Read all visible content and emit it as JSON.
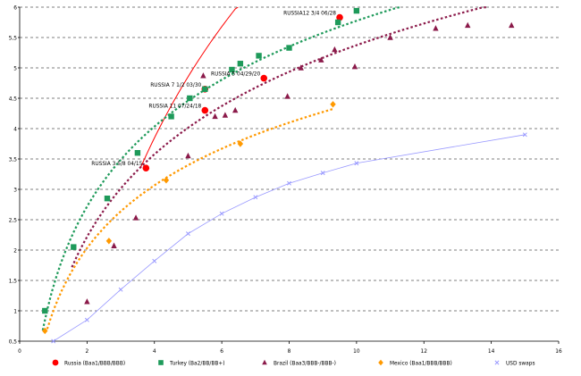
{
  "chart_data": {
    "type": "scatter",
    "xlim": [
      0,
      16
    ],
    "ylim": [
      0.5,
      6
    ],
    "x_ticks": [
      "0",
      "2",
      "4",
      "6",
      "8",
      "10",
      "12",
      "14",
      "16"
    ],
    "y_ticks": [
      "0,5",
      "1",
      "1,5",
      "2",
      "2,5",
      "3",
      "3,5",
      "4",
      "4,5",
      "5",
      "5,5",
      "6"
    ],
    "grid": "horizontal dashed",
    "legend_position": "bottom",
    "series": [
      {
        "key": "russia",
        "name": "Russia (Baa1/BBB/BBB)",
        "color": "#ff0000",
        "marker": "circle",
        "points": [
          [
            3.75,
            3.35
          ],
          [
            5.5,
            4.3
          ],
          [
            5.5,
            4.65
          ],
          [
            7.25,
            4.83
          ],
          [
            9.5,
            5.83
          ]
        ],
        "trend": {
          "style": "solid",
          "x_range": [
            3.6,
            10.2
          ],
          "a": -2.42,
          "b": 4.52
        }
      },
      {
        "key": "turkey",
        "name": "Turkey (Ba2/BB/BB+)",
        "color": "#1e9a5a",
        "marker": "square",
        "points": [
          [
            0.75,
            1.0
          ],
          [
            1.6,
            2.05
          ],
          [
            2.6,
            2.85
          ],
          [
            3.5,
            3.6
          ],
          [
            4.5,
            4.2
          ],
          [
            5.05,
            4.5
          ],
          [
            5.5,
            4.65
          ],
          [
            6.3,
            4.97
          ],
          [
            6.55,
            5.07
          ],
          [
            7.1,
            5.2
          ],
          [
            8.0,
            5.33
          ],
          [
            9.45,
            5.75
          ],
          [
            10.0,
            5.94
          ]
        ],
        "trend": {
          "style": "dotted",
          "x_range": [
            0.55,
            11.3
          ],
          "a": 1.4,
          "b": 1.9
        }
      },
      {
        "key": "brazil",
        "name": "Brazil (Baa3/BBB-/BBB-)",
        "color": "#8b1a4a",
        "marker": "triangle",
        "points": [
          [
            2.0,
            1.15
          ],
          [
            2.8,
            2.07
          ],
          [
            3.45,
            2.53
          ],
          [
            5.0,
            3.55
          ],
          [
            5.45,
            4.87
          ],
          [
            5.8,
            4.2
          ],
          [
            6.1,
            4.22
          ],
          [
            6.4,
            4.3
          ],
          [
            7.95,
            4.53
          ],
          [
            8.35,
            5.0
          ],
          [
            8.95,
            5.13
          ],
          [
            9.35,
            5.3
          ],
          [
            9.95,
            5.02
          ],
          [
            11.0,
            5.5
          ],
          [
            12.35,
            5.65
          ],
          [
            13.3,
            5.7
          ],
          [
            14.6,
            5.7
          ]
        ],
        "trend": {
          "style": "dotted",
          "x_range": [
            1.55,
            14.7
          ],
          "a": 0.86,
          "b": 1.96
        }
      },
      {
        "key": "mexico",
        "name": "Mexico (Baa1/BBB/BBB)",
        "color": "#ff9900",
        "marker": "diamond",
        "points": [
          [
            0.75,
            0.67
          ],
          [
            2.65,
            2.15
          ],
          [
            4.35,
            3.15
          ],
          [
            6.55,
            3.75
          ],
          [
            9.3,
            4.4
          ]
        ],
        "trend": {
          "style": "dotted",
          "x_range": [
            0.6,
            9.3
          ],
          "a": 1.0,
          "b": 1.49
        }
      },
      {
        "key": "usd_swaps",
        "name": "USD swaps",
        "color": "#9999ff",
        "marker": "x",
        "points": [
          [
            1.0,
            0.5
          ],
          [
            2.0,
            0.85
          ],
          [
            3.0,
            1.35
          ],
          [
            4.0,
            1.82
          ],
          [
            5.0,
            2.27
          ],
          [
            6.0,
            2.6
          ],
          [
            7.0,
            2.87
          ],
          [
            8.0,
            3.1
          ],
          [
            9.0,
            3.27
          ],
          [
            10.0,
            3.43
          ],
          [
            15.0,
            3.9
          ]
        ],
        "trend": {
          "style": "solid",
          "x_range": [
            1.0,
            15.0
          ]
        }
      }
    ],
    "annotations": [
      {
        "text": "RUSSIA12 3/4 06/28",
        "x": 9.5,
        "y": 5.83
      },
      {
        "text": "RUSSIA 5 04/29/20",
        "x": 7.25,
        "y": 4.83
      },
      {
        "text": "RUSSIA 7 1/2 03/30",
        "x": 5.5,
        "y": 4.65
      },
      {
        "text": "RUSSIA 11 07/24/18",
        "x": 5.5,
        "y": 4.3
      },
      {
        "text": "RUSSIA 3 5/8 04/15",
        "x": 3.75,
        "y": 3.35
      }
    ]
  }
}
